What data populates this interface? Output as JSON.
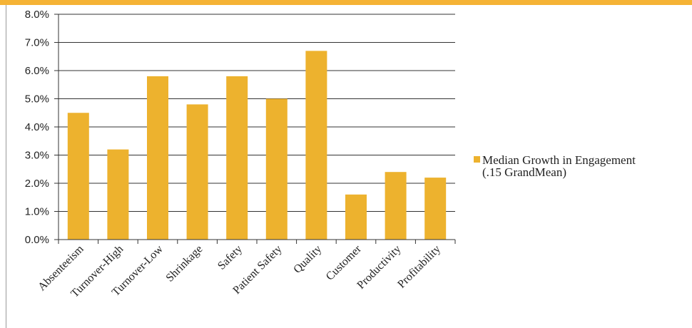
{
  "colors": {
    "accent": "#F5B335",
    "bar": "#EDB22E",
    "grid": "#333333",
    "axis": "#333333"
  },
  "chart_data": {
    "type": "bar",
    "title": "",
    "xlabel": "",
    "ylabel": "",
    "categories": [
      "Absenteeism",
      "Turnover-High",
      "Turnover-Low",
      "Shrinkage",
      "Safety",
      "Patient Safety",
      "Quality",
      "Customer",
      "Productivity",
      "Profitability"
    ],
    "series": [
      {
        "name": "Median Growth in Engagement (.15 GrandMean)",
        "values": [
          4.5,
          3.2,
          5.8,
          4.8,
          5.8,
          5.0,
          6.7,
          1.6,
          2.4,
          2.2
        ]
      }
    ],
    "ylim": [
      0,
      8
    ],
    "yticks": [
      "0.0%",
      "1.0%",
      "2.0%",
      "3.0%",
      "4.0%",
      "5.0%",
      "6.0%",
      "7.0%",
      "8.0%"
    ],
    "grid": true,
    "legend_position": "right",
    "legend_lines": [
      "Median Growth in Engagement",
      "(.15 GrandMean)"
    ]
  }
}
